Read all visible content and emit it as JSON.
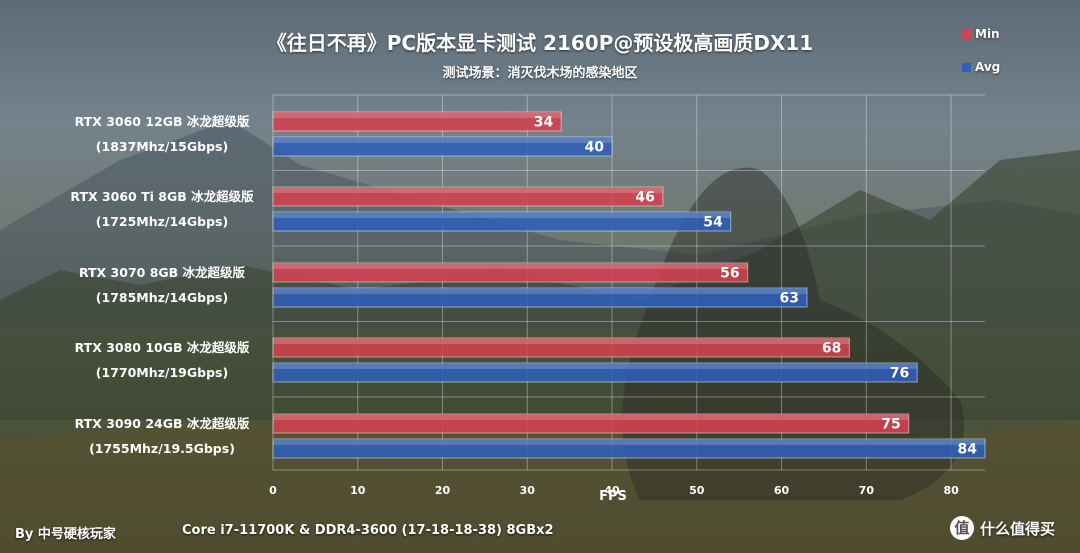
{
  "title": "《往日不再》PC版本显卡测试  2160P@预设极高画质DX11",
  "subtitle": "测试场景：消灭伐木场的感染地区",
  "footer": {
    "author": "By 中号硬核玩家",
    "platform": "Core i7-11700K & DDR4-3600  (17-18-18-38) 8GBx2"
  },
  "watermark": {
    "icon": "值",
    "text": "什么值得买"
  },
  "colors": {
    "min": "#d2424f",
    "avg": "#2f5fb8"
  },
  "chart_data": {
    "type": "bar",
    "orientation": "horizontal",
    "xlabel": "FPS",
    "xlim": [
      0,
      84
    ],
    "xticks": [
      0,
      10,
      20,
      30,
      40,
      50,
      60,
      70,
      80
    ],
    "grid": true,
    "legend_position": "top-right",
    "categories": [
      [
        "RTX 3060 12GB 冰龙超级版",
        "(1837Mhz/15Gbps)"
      ],
      [
        "RTX 3060 Ti 8GB 冰龙超级版",
        "(1725Mhz/14Gbps)"
      ],
      [
        "RTX 3070 8GB 冰龙超级版",
        "(1785Mhz/14Gbps)"
      ],
      [
        "RTX 3080 10GB 冰龙超级版",
        "(1770Mhz/19Gbps)"
      ],
      [
        "RTX 3090 24GB 冰龙超级版",
        "(1755Mhz/19.5Gbps)"
      ]
    ],
    "series": [
      {
        "name": "Min",
        "values": [
          34,
          46,
          56,
          68,
          75
        ]
      },
      {
        "name": "Avg",
        "values": [
          40,
          54,
          63,
          76,
          84
        ]
      }
    ]
  }
}
